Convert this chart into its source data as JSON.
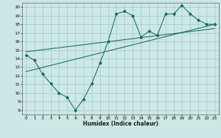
{
  "xlabel": "Humidex (Indice chaleur)",
  "xlim": [
    -0.5,
    23.5
  ],
  "ylim": [
    7.5,
    20.5
  ],
  "xticks": [
    0,
    1,
    2,
    3,
    4,
    5,
    6,
    7,
    8,
    9,
    10,
    11,
    12,
    13,
    14,
    15,
    16,
    17,
    18,
    19,
    20,
    21,
    22,
    23
  ],
  "yticks": [
    8,
    9,
    10,
    11,
    12,
    13,
    14,
    15,
    16,
    17,
    18,
    19,
    20
  ],
  "bg_color": "#cce8e4",
  "grid_color": "#a8ccc8",
  "line_color": "#1a6b60",
  "line1_x": [
    0,
    1,
    2,
    3,
    4,
    5,
    6,
    7,
    8,
    9,
    10,
    11,
    12,
    13,
    14,
    15,
    16,
    17,
    18,
    19,
    20,
    21,
    22,
    23
  ],
  "line1_y": [
    14.4,
    13.8,
    12.2,
    11.1,
    10.0,
    9.5,
    8.0,
    9.3,
    11.1,
    13.5,
    16.0,
    19.2,
    19.5,
    19.0,
    16.5,
    17.2,
    16.7,
    19.2,
    19.2,
    20.2,
    19.2,
    18.5,
    18.0,
    18.0
  ],
  "line2_x": [
    0,
    23
  ],
  "line2_y": [
    12.5,
    18.0
  ],
  "line3_x": [
    0,
    23
  ],
  "line3_y": [
    14.8,
    17.5
  ]
}
